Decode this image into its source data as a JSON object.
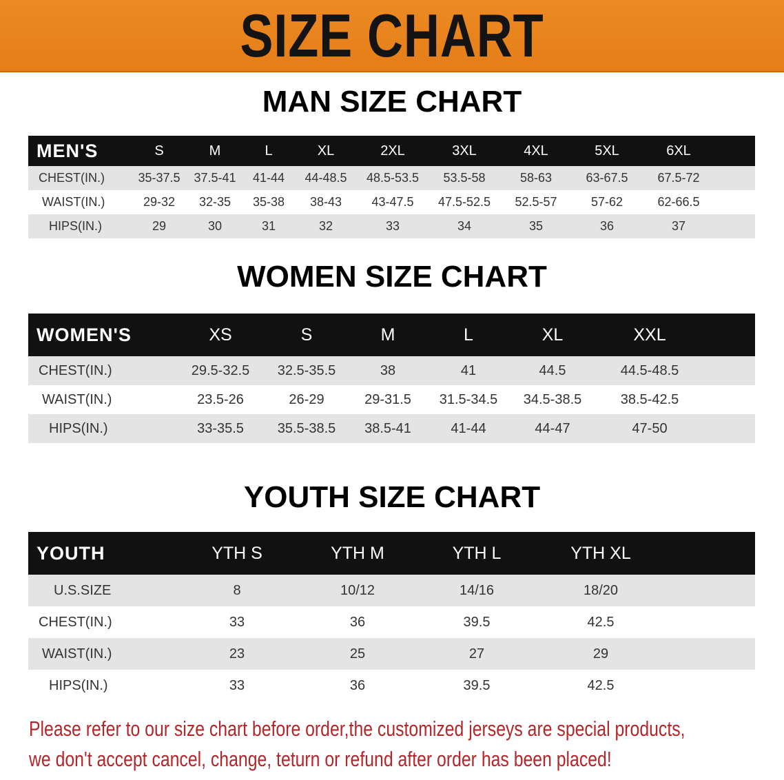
{
  "banner": {
    "title": "SIZE CHART",
    "color": "#e8801e"
  },
  "men": {
    "title": "MAN SIZE CHART",
    "header": [
      "MEN'S",
      "S",
      "M",
      "L",
      "XL",
      "2XL",
      "3XL",
      "4XL",
      "5XL",
      "6XL"
    ],
    "rows": [
      [
        "CHEST(IN.)",
        "35-37.5",
        "37.5-41",
        "41-44",
        "44-48.5",
        "48.5-53.5",
        "53.5-58",
        "58-63",
        "63-67.5",
        "67.5-72"
      ],
      [
        "WAIST(IN.)",
        "29-32",
        "32-35",
        "35-38",
        "38-43",
        "43-47.5",
        "47.5-52.5",
        "52.5-57",
        "57-62",
        "62-66.5"
      ],
      [
        "HIPS(IN.)",
        "29",
        "30",
        "31",
        "32",
        "33",
        "34",
        "35",
        "36",
        "37"
      ]
    ]
  },
  "women": {
    "title": "WOMEN SIZE CHART",
    "header": [
      "WOMEN'S",
      "XS",
      "S",
      "M",
      "L",
      "XL",
      "XXL"
    ],
    "rows": [
      [
        "CHEST(IN.)",
        "29.5-32.5",
        "32.5-35.5",
        "38",
        "41",
        "44.5",
        "44.5-48.5"
      ],
      [
        "WAIST(IN.)",
        "23.5-26",
        "26-29",
        "29-31.5",
        "31.5-34.5",
        "34.5-38.5",
        "38.5-42.5"
      ],
      [
        "HIPS(IN.)",
        "33-35.5",
        "35.5-38.5",
        "38.5-41",
        "41-44",
        "44-47",
        "47-50"
      ]
    ]
  },
  "youth": {
    "title": "YOUTH SIZE CHART",
    "header": [
      "YOUTH",
      "YTH S",
      "YTH M",
      "YTH L",
      "YTH XL"
    ],
    "rows": [
      [
        "U.S.SIZE",
        "8",
        "10/12",
        "14/16",
        "18/20"
      ],
      [
        "CHEST(IN.)",
        "33",
        "36",
        "39.5",
        "42.5"
      ],
      [
        "WAIST(IN.)",
        "23",
        "25",
        "27",
        "29"
      ],
      [
        "HIPS(IN.)",
        "33",
        "36",
        "39.5",
        "42.5"
      ]
    ]
  },
  "notice": {
    "line1": "Please refer to our size chart before order,the customized jerseys are special products,",
    "line2": "we don't accept cancel, change, teturn or refund after order has been placed!",
    "color": "#b3262a"
  }
}
